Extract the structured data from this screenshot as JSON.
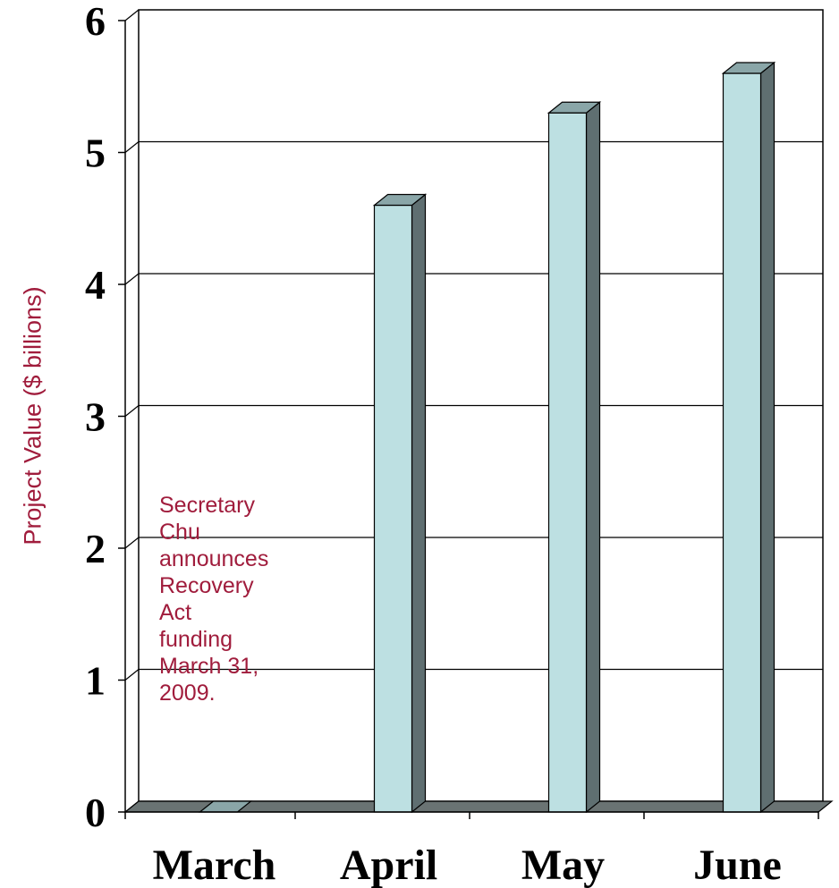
{
  "chart_data": {
    "type": "bar",
    "title": "",
    "xlabel": "",
    "ylabel": "Project Value ($ billions)",
    "categories": [
      "March",
      "April",
      "May",
      "June"
    ],
    "values": [
      0,
      4.6,
      5.3,
      5.6
    ],
    "ylim": [
      0,
      6
    ],
    "yticks": [
      "0",
      "1",
      "2",
      "3",
      "4",
      "5",
      "6"
    ],
    "grid": true,
    "bar_color": "#bde0e2",
    "bar_side_color": "#5f6f71",
    "bar_top_color": "#8aa6a8",
    "floor_color": "#6a7373",
    "annotation_lines": [
      "Secretary",
      "Chu",
      "announces",
      "Recovery",
      "Act",
      "funding",
      "March 31,",
      "2009."
    ],
    "annotation_color": "#a01c3c"
  }
}
